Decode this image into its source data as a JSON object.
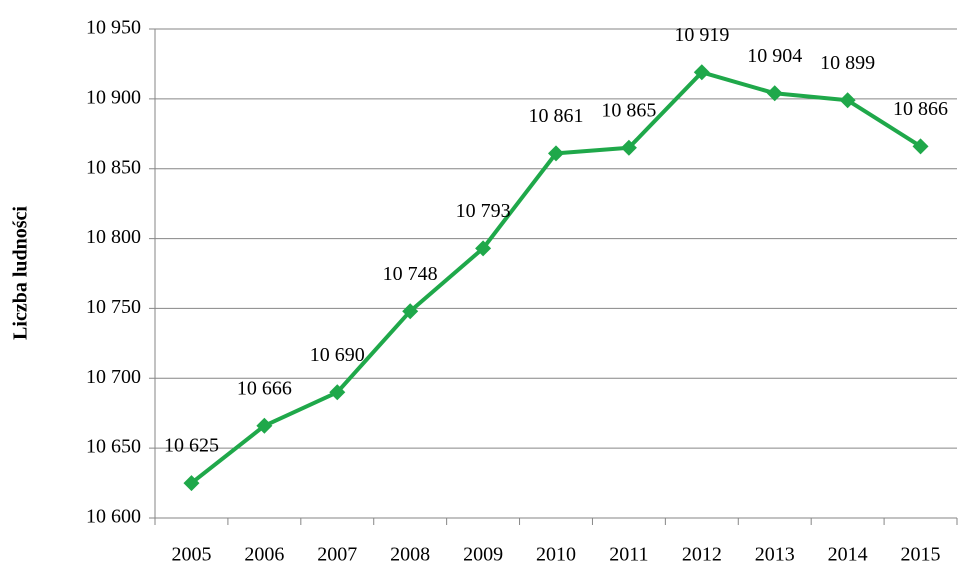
{
  "chart_data": {
    "type": "line",
    "y_label": "Liczba ludności",
    "categories": [
      "2005",
      "2006",
      "2007",
      "2008",
      "2009",
      "2010",
      "2011",
      "2012",
      "2013",
      "2014",
      "2015"
    ],
    "values": [
      10625,
      10666,
      10690,
      10748,
      10793,
      10861,
      10865,
      10919,
      10904,
      10899,
      10866
    ],
    "value_labels": [
      "10 625",
      "10 666",
      "10 690",
      "10 748",
      "10 793",
      "10 861",
      "10 865",
      "10 919",
      "10 904",
      "10 899",
      "10 866"
    ],
    "color": "#1fa84a",
    "ylim": [
      10600,
      10950
    ],
    "yticks": [
      {
        "value": 10600,
        "label": "10 600"
      },
      {
        "value": 10650,
        "label": "10 650"
      },
      {
        "value": 10700,
        "label": "10 700"
      },
      {
        "value": 10750,
        "label": "10 750"
      },
      {
        "value": 10800,
        "label": "10 800"
      },
      {
        "value": 10850,
        "label": "10 850"
      },
      {
        "value": 10900,
        "label": "10 900"
      },
      {
        "value": 10950,
        "label": "10 950"
      }
    ],
    "grid": true
  }
}
